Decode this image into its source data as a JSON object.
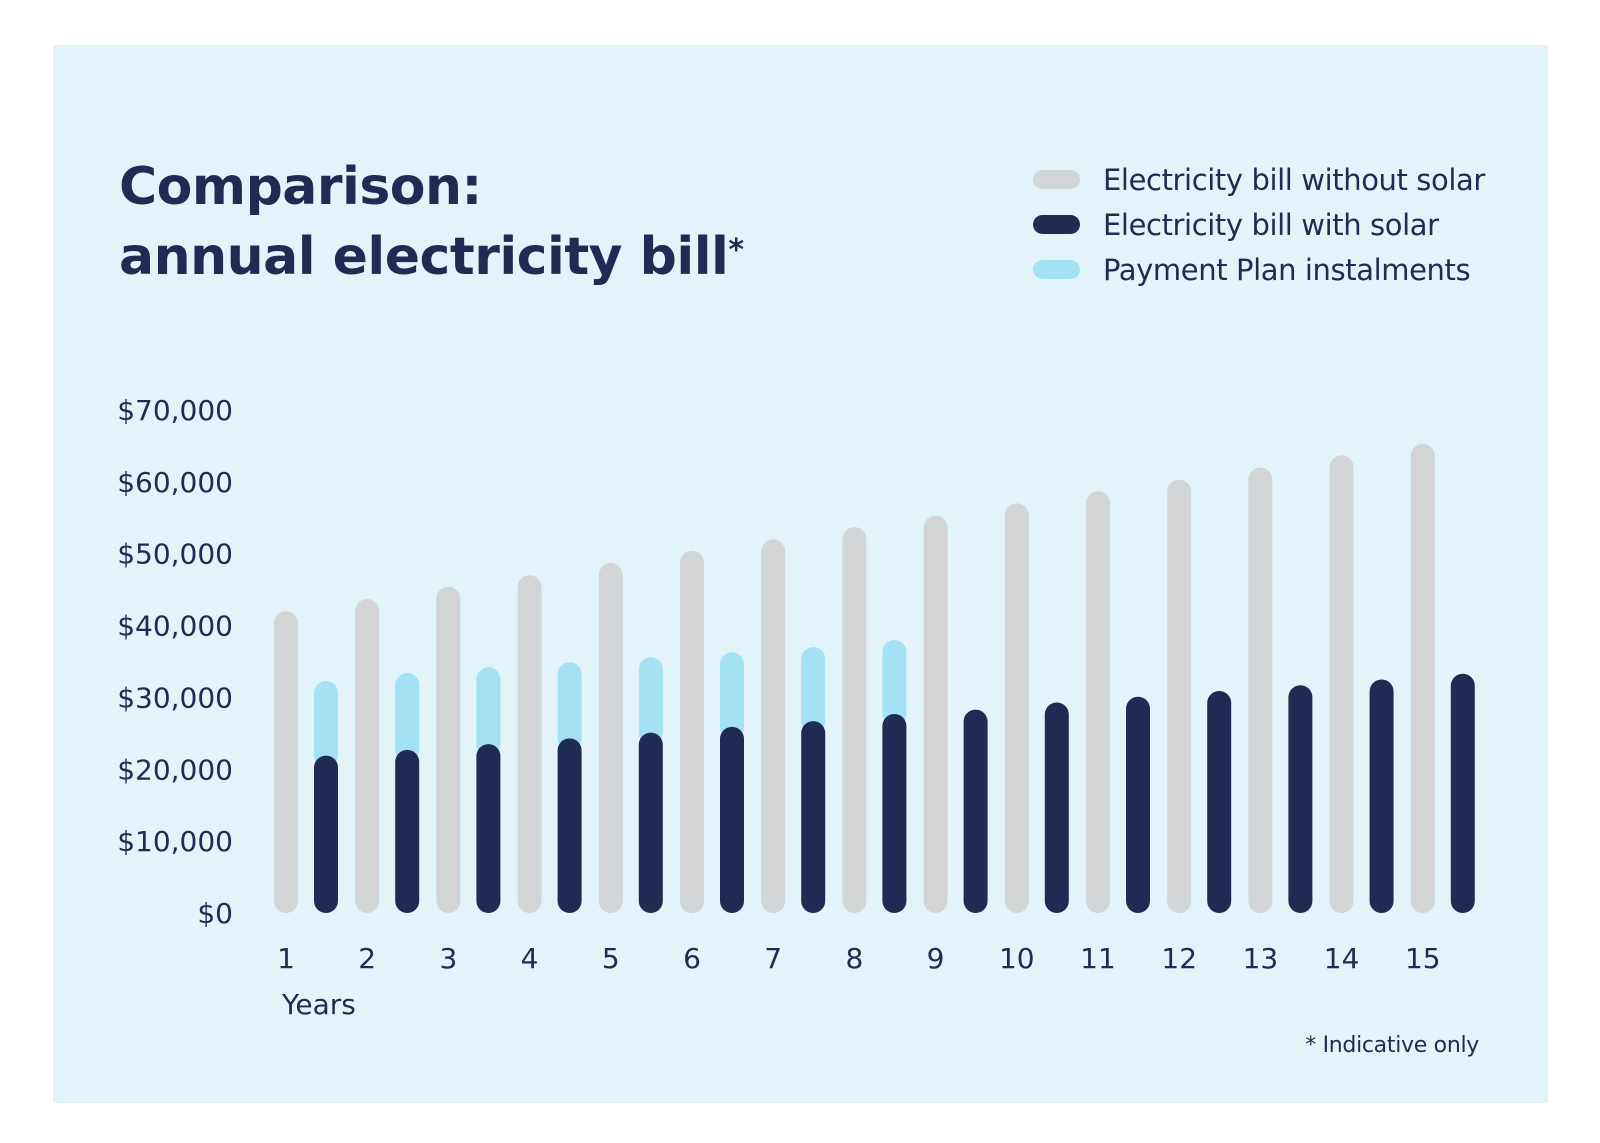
{
  "chart_data": {
    "type": "bar",
    "title_line1": "Comparison:",
    "title_line2": "annual electricity bill",
    "title_mark": "*",
    "xlabel": "Years",
    "ylabel": "",
    "ylim": [
      0,
      70000
    ],
    "y_ticks": [
      {
        "value": 0,
        "label": "$0"
      },
      {
        "value": 10000,
        "label": "$10,000"
      },
      {
        "value": 20000,
        "label": "$20,000"
      },
      {
        "value": 30000,
        "label": "$30,000"
      },
      {
        "value": 40000,
        "label": "$40,000"
      },
      {
        "value": 50000,
        "label": "$50,000"
      },
      {
        "value": 60000,
        "label": "$60,000"
      },
      {
        "value": 70000,
        "label": "$70,000"
      }
    ],
    "categories": [
      "1",
      "2",
      "3",
      "4",
      "5",
      "6",
      "7",
      "8",
      "9",
      "10",
      "11",
      "12",
      "13",
      "14",
      "15"
    ],
    "grid": false,
    "legend_position": "top-right",
    "series": [
      {
        "name": "Electricity bill without solar",
        "color": "#d3d4d6",
        "values": [
          42000,
          43700,
          45400,
          47000,
          48700,
          50400,
          52000,
          53700,
          55300,
          57000,
          58700,
          60300,
          62000,
          63700,
          65300
        ]
      },
      {
        "name": "Electricity bill with solar",
        "color": "#1f2b52",
        "values": [
          21900,
          22700,
          23500,
          24300,
          25100,
          25900,
          26700,
          27700,
          28300,
          29300,
          30100,
          30900,
          31700,
          32500,
          33300
        ]
      },
      {
        "name": "Payment Plan instalments",
        "color": "#a4e2f3",
        "stacked_on": "Electricity bill with solar",
        "values": [
          10400,
          10700,
          10700,
          10600,
          10500,
          10400,
          10300,
          10300,
          0,
          0,
          0,
          0,
          0,
          0,
          0
        ]
      }
    ],
    "footnote": "* Indicative only"
  }
}
